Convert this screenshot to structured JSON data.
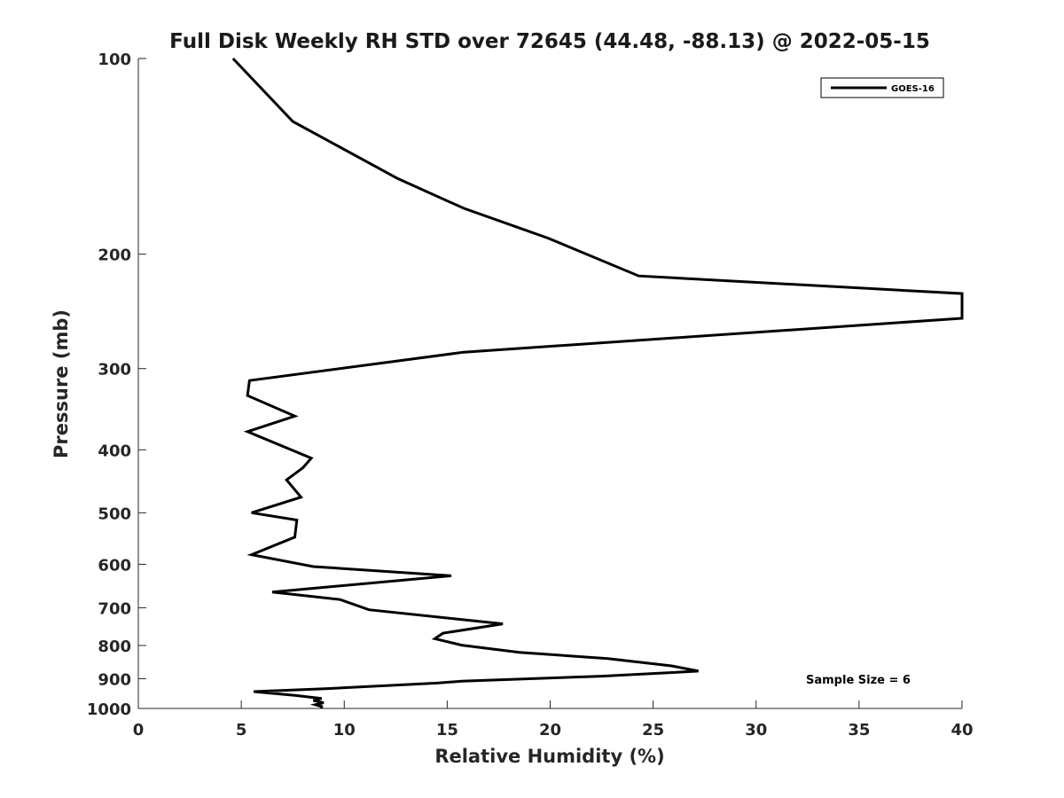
{
  "chart_data": {
    "type": "line",
    "title": "Full Disk Weekly RH STD over 72645 (44.48, -88.13) @ 2022-05-15",
    "xlabel": "Relative Humidity (%)",
    "ylabel": "Pressure (mb)",
    "xlim": [
      0,
      40
    ],
    "ylim": [
      100,
      1000
    ],
    "y_scale": "log",
    "y_reversed": true,
    "grid": false,
    "x_ticks": [
      0,
      5,
      10,
      15,
      20,
      25,
      30,
      35,
      40
    ],
    "y_ticks": [
      100,
      200,
      300,
      400,
      500,
      600,
      700,
      800,
      900,
      1000
    ],
    "legend": {
      "position": "top-right",
      "entries": [
        "GOES-16"
      ]
    },
    "annotation": "Sample Size = 6",
    "series": [
      {
        "name": "GOES-16",
        "color": "#000000",
        "points": [
          [
            4.6,
            100
          ],
          [
            7.5,
            125
          ],
          [
            12.6,
            153
          ],
          [
            15.8,
            170
          ],
          [
            19.9,
            189
          ],
          [
            24.3,
            216
          ],
          [
            40.0,
            230
          ],
          [
            40.0,
            251
          ],
          [
            15.8,
            283
          ],
          [
            5.4,
            313
          ],
          [
            5.3,
            330
          ],
          [
            7.6,
            355
          ],
          [
            5.3,
            375
          ],
          [
            8.4,
            412
          ],
          [
            8.0,
            426
          ],
          [
            7.2,
            445
          ],
          [
            7.9,
            473
          ],
          [
            5.5,
            500
          ],
          [
            7.7,
            513
          ],
          [
            7.6,
            545
          ],
          [
            5.5,
            580
          ],
          [
            8.5,
            605
          ],
          [
            15.2,
            625
          ],
          [
            6.5,
            662
          ],
          [
            9.8,
            680
          ],
          [
            11.2,
            705
          ],
          [
            17.7,
            741
          ],
          [
            14.8,
            766
          ],
          [
            14.4,
            781
          ],
          [
            15.7,
            799
          ],
          [
            18.5,
            820
          ],
          [
            22.8,
            838
          ],
          [
            25.9,
            860
          ],
          [
            27.2,
            876
          ],
          [
            22.5,
            892
          ],
          [
            15.7,
            908
          ],
          [
            14.5,
            914
          ],
          [
            9.2,
            932
          ],
          [
            5.6,
            942
          ],
          [
            7.6,
            955
          ],
          [
            8.9,
            965
          ],
          [
            8.5,
            972
          ],
          [
            9.0,
            980
          ],
          [
            8.6,
            987
          ],
          [
            8.9,
            993
          ],
          [
            8.9,
            1000
          ]
        ]
      }
    ]
  }
}
